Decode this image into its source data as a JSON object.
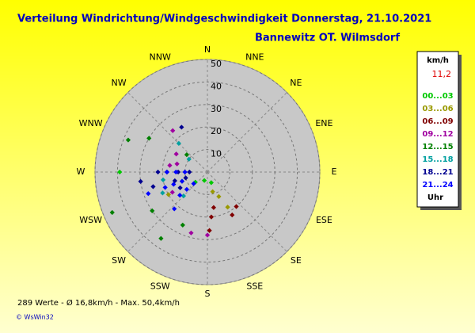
{
  "chart_data": {
    "type": "polar-scatter",
    "title": "Verteilung Windrichtung/Windgeschwindigkeit  Donnerstag, 21.10.2021",
    "subtitle": "Bannewitz OT. Wilmsdorf",
    "directions": [
      "N",
      "NNE",
      "NE",
      "ENE",
      "E",
      "ESE",
      "SE",
      "SSE",
      "S",
      "SSW",
      "SW",
      "WSW",
      "W",
      "WNW",
      "NW",
      "NNW"
    ],
    "rlim": [
      0,
      50
    ],
    "rticks": [
      10,
      20,
      30,
      40,
      50
    ],
    "legend_unit": "km/h",
    "current_value": "11,2",
    "legend_footer": "Uhr",
    "series": [
      {
        "name": "00...03",
        "color": "#00c800",
        "x": [
          270,
          250,
          200,
          160,
          230
        ],
        "values": [
          39,
          12,
          4,
          5,
          7
        ]
      },
      {
        "name": "03...06",
        "color": "#999900",
        "x": [
          155,
          150,
          240,
          165
        ],
        "values": [
          12,
          18,
          20,
          9
        ]
      },
      {
        "name": "06...09",
        "color": "#800000",
        "x": [
          170,
          175,
          140,
          150,
          178
        ],
        "values": [
          16,
          20,
          20,
          22,
          26
        ]
      },
      {
        "name": "09...12",
        "color": "#a000a0",
        "x": [
          195,
          180,
          280,
          285,
          300,
          240,
          320
        ],
        "values": [
          28,
          28,
          17,
          14,
          16,
          18,
          24
        ]
      },
      {
        "name": "12...15",
        "color": "#008000",
        "x": [
          247,
          235,
          215,
          300,
          310,
          205,
          292
        ],
        "values": [
          46,
          30,
          36,
          30,
          12,
          26,
          38
        ]
      },
      {
        "name": "15...18",
        "color": "#00a0a0",
        "x": [
          260,
          245,
          315,
          225,
          305
        ],
        "values": [
          20,
          22,
          18,
          15,
          10
        ]
      },
      {
        "name": "18...21",
        "color": "#000090",
        "x": [
          270,
          270,
          270,
          270,
          255,
          255,
          255,
          330,
          240,
          262
        ],
        "values": [
          8,
          13,
          18,
          22,
          10,
          15,
          25,
          23,
          14,
          30
        ]
      },
      {
        "name": "21...24",
        "color": "#0000ff",
        "x": [
          270,
          270,
          270,
          250,
          250,
          250,
          250,
          230,
          230,
          230,
          222
        ],
        "values": [
          10,
          14,
          18,
          12,
          16,
          20,
          28,
          8,
          12,
          16,
          22
        ]
      }
    ],
    "footer": "289 Werte   -   Ø 16,8km/h   -   Max. 50,4km/h",
    "copyright": "© WsWin32"
  }
}
